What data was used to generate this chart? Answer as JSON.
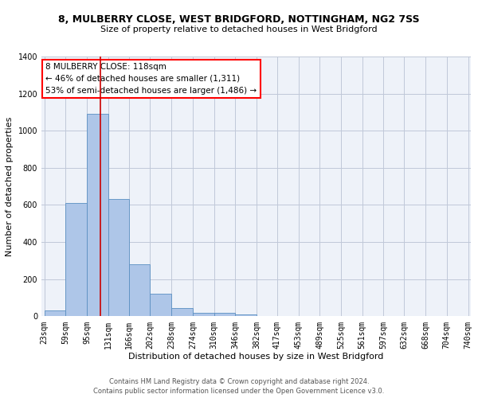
{
  "title1": "8, MULBERRY CLOSE, WEST BRIDGFORD, NOTTINGHAM, NG2 7SS",
  "title2": "Size of property relative to detached houses in West Bridgford",
  "xlabel": "Distribution of detached houses by size in West Bridgford",
  "ylabel": "Number of detached properties",
  "bin_edges": [
    23,
    59,
    95,
    131,
    166,
    202,
    238,
    274,
    310,
    346,
    382,
    417,
    453,
    489,
    525,
    561,
    597,
    632,
    668,
    704,
    740
  ],
  "bar_heights": [
    30,
    610,
    1090,
    630,
    280,
    120,
    45,
    20,
    20,
    10,
    0,
    0,
    0,
    0,
    0,
    0,
    0,
    0,
    0,
    0
  ],
  "bar_color": "#aec6e8",
  "bar_edgecolor": "#5a8fc2",
  "bg_color": "#eef2f9",
  "grid_color": "#c0c8d8",
  "vline_x": 118,
  "vline_color": "#cc0000",
  "ylim": [
    0,
    1400
  ],
  "yticks": [
    0,
    200,
    400,
    600,
    800,
    1000,
    1200,
    1400
  ],
  "annotation_text": "8 MULBERRY CLOSE: 118sqm\n← 46% of detached houses are smaller (1,311)\n53% of semi-detached houses are larger (1,486) →",
  "footer1": "Contains HM Land Registry data © Crown copyright and database right 2024.",
  "footer2": "Contains public sector information licensed under the Open Government Licence v3.0.",
  "title1_fontsize": 9,
  "title2_fontsize": 8,
  "xlabel_fontsize": 8,
  "ylabel_fontsize": 8,
  "tick_fontsize": 7,
  "annotation_fontsize": 7.5,
  "footer_fontsize": 6
}
